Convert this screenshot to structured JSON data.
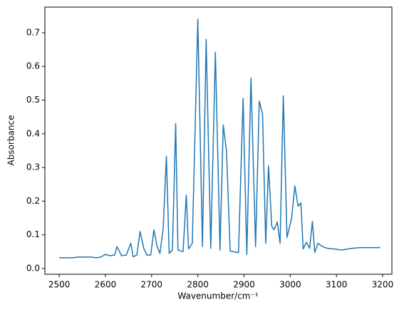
{
  "chart_data": {
    "type": "line",
    "xlabel": "Wavenumber/cm⁻¹",
    "ylabel": "Absorbance",
    "color": "#1f77b4",
    "x": [
      2500,
      2510,
      2530,
      2540,
      2560,
      2570,
      2580,
      2590,
      2600,
      2610,
      2620,
      2625,
      2635,
      2645,
      2655,
      2660,
      2668,
      2675,
      2683,
      2690,
      2698,
      2705,
      2712,
      2718,
      2725,
      2732,
      2738,
      2745,
      2752,
      2757,
      2768,
      2775,
      2780,
      2788,
      2800,
      2810,
      2818,
      2828,
      2838,
      2848,
      2855,
      2862,
      2870,
      2888,
      2898,
      2906,
      2915,
      2925,
      2933,
      2940,
      2947,
      2953,
      2960,
      2965,
      2972,
      2978,
      2985,
      2993,
      3003,
      3010,
      3017,
      3023,
      3028,
      3035,
      3042,
      3048,
      3053,
      3060,
      3070,
      3080,
      3095,
      3110,
      3125,
      3135,
      3150,
      3170,
      3195
    ],
    "y": [
      0.032,
      0.032,
      0.032,
      0.034,
      0.034,
      0.034,
      0.032,
      0.034,
      0.042,
      0.038,
      0.04,
      0.065,
      0.038,
      0.04,
      0.075,
      0.035,
      0.04,
      0.11,
      0.06,
      0.04,
      0.04,
      0.115,
      0.065,
      0.045,
      0.12,
      0.333,
      0.045,
      0.055,
      0.43,
      0.055,
      0.05,
      0.218,
      0.058,
      0.075,
      0.74,
      0.065,
      0.68,
      0.06,
      0.642,
      0.055,
      0.426,
      0.35,
      0.052,
      0.047,
      0.505,
      0.042,
      0.565,
      0.065,
      0.497,
      0.46,
      0.075,
      0.305,
      0.125,
      0.115,
      0.138,
      0.075,
      0.513,
      0.092,
      0.15,
      0.245,
      0.185,
      0.195,
      0.058,
      0.078,
      0.06,
      0.14,
      0.048,
      0.075,
      0.065,
      0.06,
      0.058,
      0.055,
      0.058,
      0.06,
      0.062,
      0.062,
      0.062
    ],
    "xlim": [
      2469,
      3220
    ],
    "ylim": [
      -0.017,
      0.776
    ],
    "xticks": [
      2500,
      2600,
      2700,
      2800,
      2900,
      3000,
      3100,
      3200
    ],
    "yticks": [
      {
        "value": 0,
        "label": "0.0"
      },
      0.1,
      0.2,
      0.3,
      0.4,
      0.5,
      0.6,
      0.7
    ]
  }
}
